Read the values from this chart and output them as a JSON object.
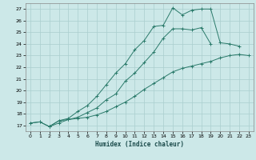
{
  "title": "",
  "xlabel": "Humidex (Indice chaleur)",
  "bg_color": "#cce8e8",
  "grid_color": "#aacece",
  "line_color": "#2a7a6a",
  "xlim": [
    -0.5,
    23.5
  ],
  "ylim": [
    16.5,
    27.5
  ],
  "xticks": [
    0,
    1,
    2,
    3,
    4,
    5,
    6,
    7,
    8,
    9,
    10,
    11,
    12,
    13,
    14,
    15,
    16,
    17,
    18,
    19,
    20,
    21,
    22,
    23
  ],
  "yticks": [
    17,
    18,
    19,
    20,
    21,
    22,
    23,
    24,
    25,
    26,
    27
  ],
  "line1_x": [
    0,
    1,
    2,
    3,
    4,
    5,
    6,
    7,
    8,
    9,
    10,
    11,
    12,
    13,
    14,
    15,
    16,
    17,
    18,
    19,
    20,
    21,
    22
  ],
  "line1_y": [
    17.2,
    17.3,
    16.9,
    17.4,
    17.6,
    18.2,
    18.7,
    19.5,
    20.5,
    21.5,
    22.3,
    23.5,
    24.3,
    25.5,
    25.6,
    27.1,
    26.5,
    26.9,
    27.0,
    27.0,
    24.1,
    24.0,
    23.8
  ],
  "line2_x": [
    2,
    3,
    4,
    5,
    6,
    7,
    8,
    9,
    10,
    11,
    12,
    13,
    14,
    15,
    16,
    17,
    18,
    19
  ],
  "line2_y": [
    16.9,
    17.4,
    17.5,
    17.7,
    18.1,
    18.5,
    19.2,
    19.7,
    20.8,
    21.5,
    22.4,
    23.3,
    24.5,
    25.3,
    25.3,
    25.2,
    25.4,
    24.0
  ],
  "line3_x": [
    0,
    1,
    2,
    3,
    4,
    5,
    6,
    7,
    8,
    9,
    10,
    11,
    12,
    13,
    14,
    15,
    16,
    17,
    18,
    19,
    20,
    21,
    22,
    23
  ],
  "line3_y": [
    17.2,
    17.3,
    16.9,
    17.2,
    17.5,
    17.6,
    17.7,
    17.9,
    18.2,
    18.6,
    19.0,
    19.5,
    20.1,
    20.6,
    21.1,
    21.6,
    21.9,
    22.1,
    22.3,
    22.5,
    22.8,
    23.0,
    23.1,
    23.0
  ]
}
